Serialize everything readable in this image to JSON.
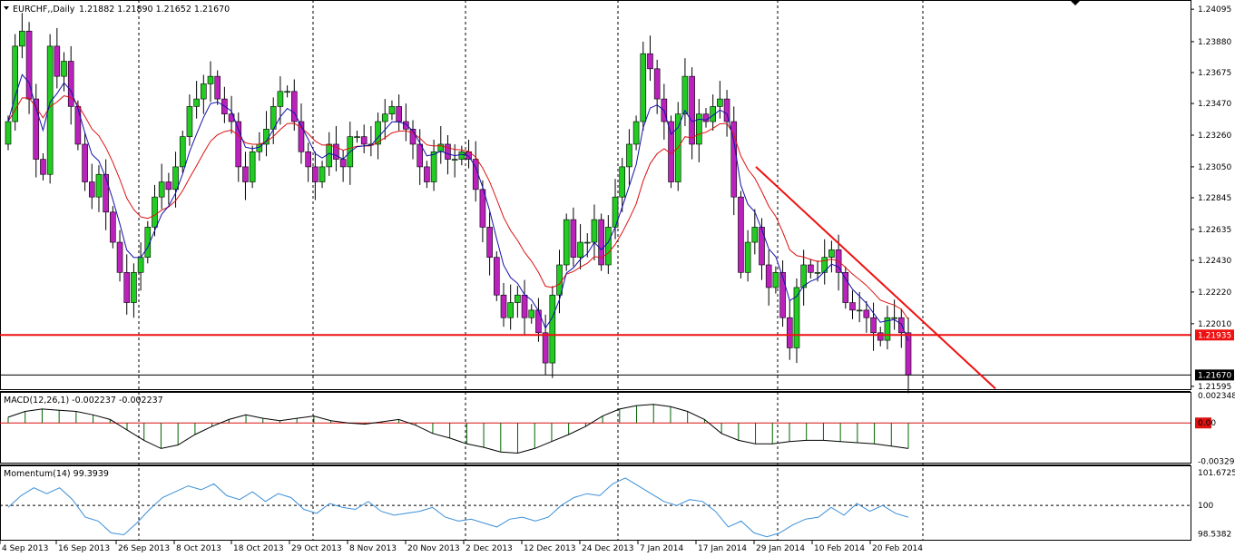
{
  "window": {
    "symbol_header": "EURCHF,,Daily",
    "ohlc_header": "1.21882 1.21890 1.21652 1.21670",
    "menu_arrow_icon": "triangle-down-icon",
    "scroll_marker_icon": "triangle-down-icon"
  },
  "colors": {
    "bull": "#22cc22",
    "bear": "#bb22bb",
    "ema_fast": "#1111aa",
    "ema_slow": "#dd1111",
    "trendline": "#ee1111",
    "support": "#ee1111",
    "macd_hist": "#006400",
    "momentum": "#3a8fd8"
  },
  "price_axis": {
    "labels": [
      "1.24095",
      "1.23880",
      "1.23675",
      "1.23470",
      "1.23260",
      "1.23050",
      "1.22845",
      "1.22635",
      "1.22430",
      "1.22220",
      "1.22010",
      "1.21595"
    ],
    "support_label": "1.21935",
    "last_price_label": "1.21670"
  },
  "macd": {
    "title": "MACD(12,26,1) -0.002237 -0.002237",
    "axis_labels": [
      "0.002348",
      "0.00",
      "-0.003299"
    ]
  },
  "momentum": {
    "title": "Momentum(14) 99.3939",
    "axis_labels": [
      "101.6725",
      "100",
      "98.5382"
    ]
  },
  "time_axis": [
    "4 Sep 2013",
    "16 Sep 2013",
    "26 Sep 2013",
    "8 Oct 2013",
    "18 Oct 2013",
    "29 Oct 2013",
    "8 Nov 2013",
    "20 Nov 2013",
    "2 Dec 2013",
    "12 Dec 2013",
    "24 Dec 2013",
    "7 Jan 2014",
    "17 Jan 2014",
    "29 Jan 2014",
    "10 Feb 2014",
    "20 Feb 2014"
  ],
  "chart_data": [
    {
      "type": "candlestick",
      "title": "EURCHF,,Daily",
      "ylim": [
        1.2157,
        1.2415
      ],
      "yticks": [
        1.24095,
        1.2388,
        1.23675,
        1.2347,
        1.2326,
        1.2305,
        1.22845,
        1.22635,
        1.2243,
        1.2222,
        1.2201,
        1.21595
      ],
      "x_ticklabels": [
        "4 Sep 2013",
        "16 Sep 2013",
        "26 Sep 2013",
        "8 Oct 2013",
        "18 Oct 2013",
        "29 Oct 2013",
        "8 Nov 2013",
        "20 Nov 2013",
        "2 Dec 2013",
        "12 Dec 2013",
        "24 Dec 2013",
        "7 Jan 2014",
        "17 Jan 2014",
        "29 Jan 2014",
        "10 Feb 2014",
        "20 Feb 2014"
      ],
      "candles_close": [
        1.2335,
        1.2385,
        1.2395,
        1.235,
        1.231,
        1.23,
        1.2385,
        1.2365,
        1.2375,
        1.2345,
        1.232,
        1.2295,
        1.2285,
        1.23,
        1.2275,
        1.2255,
        1.2235,
        1.2215,
        1.2235,
        1.2245,
        1.2265,
        1.2285,
        1.2295,
        1.229,
        1.2305,
        1.2325,
        1.2345,
        1.235,
        1.236,
        1.2365,
        1.235,
        1.234,
        1.2335,
        1.2305,
        1.2295,
        1.2315,
        1.232,
        1.233,
        1.2345,
        1.2355,
        1.2355,
        1.2335,
        1.2315,
        1.2305,
        1.2295,
        1.2305,
        1.232,
        1.231,
        1.2305,
        1.2325,
        1.2325,
        1.232,
        1.232,
        1.2335,
        1.234,
        1.2345,
        1.2335,
        1.233,
        1.232,
        1.2305,
        1.2295,
        1.2315,
        1.232,
        1.231,
        1.231,
        1.2315,
        1.231,
        1.229,
        1.2265,
        1.2245,
        1.222,
        1.2205,
        1.2215,
        1.222,
        1.2205,
        1.221,
        1.2195,
        1.2175,
        1.222,
        1.224,
        1.227,
        1.2245,
        1.2255,
        1.2255,
        1.227,
        1.224,
        1.2265,
        1.2285,
        1.2305,
        1.232,
        1.2335,
        1.238,
        1.237,
        1.235,
        1.2335,
        1.2295,
        1.234,
        1.2365,
        1.232,
        1.234,
        1.2335,
        1.2345,
        1.235,
        1.2335,
        1.2285,
        1.2235,
        1.2255,
        1.2265,
        1.224,
        1.2225,
        1.2235,
        1.2205,
        1.2185,
        1.2225,
        1.224,
        1.2235,
        1.2235,
        1.2245,
        1.225,
        1.2235,
        1.2215,
        1.221,
        1.221,
        1.2205,
        1.2195,
        1.219,
        1.2205,
        1.2205,
        1.2195,
        1.2167
      ],
      "moving_averages": [
        "blue (fast)",
        "red (slow)"
      ],
      "horizontal_lines": [
        1.21935,
        1.2167
      ],
      "trendline": {
        "from": [
          "29 Jan 2014",
          1.2305
        ],
        "to": [
          "26 Feb 2014",
          1.2158
        ]
      }
    },
    {
      "type": "bar",
      "title": "MACD(12,26,1) -0.002237 -0.002237",
      "ylim": [
        -0.0035,
        0.0026
      ],
      "yticks": [
        0.002348,
        0.0,
        -0.003299
      ],
      "values": [
        0.0005,
        0.001,
        0.0012,
        0.0011,
        0.001,
        0.0007,
        0.0003,
        -0.0006,
        -0.0015,
        -0.0022,
        -0.0019,
        -0.001,
        -0.0003,
        0.0003,
        0.0007,
        0.0004,
        0.0002,
        0.0004,
        0.0006,
        0.0002,
        0.0,
        -0.0001,
        0.0001,
        0.0003,
        -0.0002,
        -0.0009,
        -0.0013,
        -0.0018,
        -0.0021,
        -0.0025,
        -0.0026,
        -0.0022,
        -0.0016,
        -0.001,
        -0.0003,
        0.0006,
        0.0012,
        0.0015,
        0.0016,
        0.0014,
        0.001,
        0.0003,
        -0.0009,
        -0.0015,
        -0.0018,
        -0.0018,
        -0.0016,
        -0.0015,
        -0.0015,
        -0.0016,
        -0.0017,
        -0.0018,
        -0.002,
        -0.0022
      ]
    },
    {
      "type": "line",
      "title": "Momentum(14) 99.3939",
      "ylim": [
        98.2,
        102.0
      ],
      "yticks": [
        101.6725,
        100,
        98.5382
      ],
      "values": [
        99.9,
        100.5,
        100.9,
        100.6,
        100.9,
        100.3,
        99.4,
        99.2,
        98.6,
        98.5,
        99.1,
        99.8,
        100.4,
        100.7,
        101.0,
        100.8,
        101.1,
        100.5,
        100.3,
        100.7,
        100.2,
        100.6,
        100.4,
        99.8,
        99.6,
        100.1,
        99.9,
        99.8,
        100.2,
        99.7,
        99.5,
        99.6,
        99.7,
        99.9,
        99.4,
        99.2,
        99.3,
        99.1,
        98.9,
        99.3,
        99.4,
        99.2,
        99.4,
        100.0,
        100.4,
        100.6,
        100.5,
        101.1,
        101.4,
        101.0,
        100.6,
        100.2,
        100.0,
        100.3,
        100.2,
        99.7,
        98.9,
        99.2,
        98.6,
        98.4,
        98.6,
        99.0,
        99.3,
        99.4,
        99.9,
        99.5,
        100.1,
        99.7,
        100.0,
        99.6,
        99.4
      ]
    }
  ]
}
